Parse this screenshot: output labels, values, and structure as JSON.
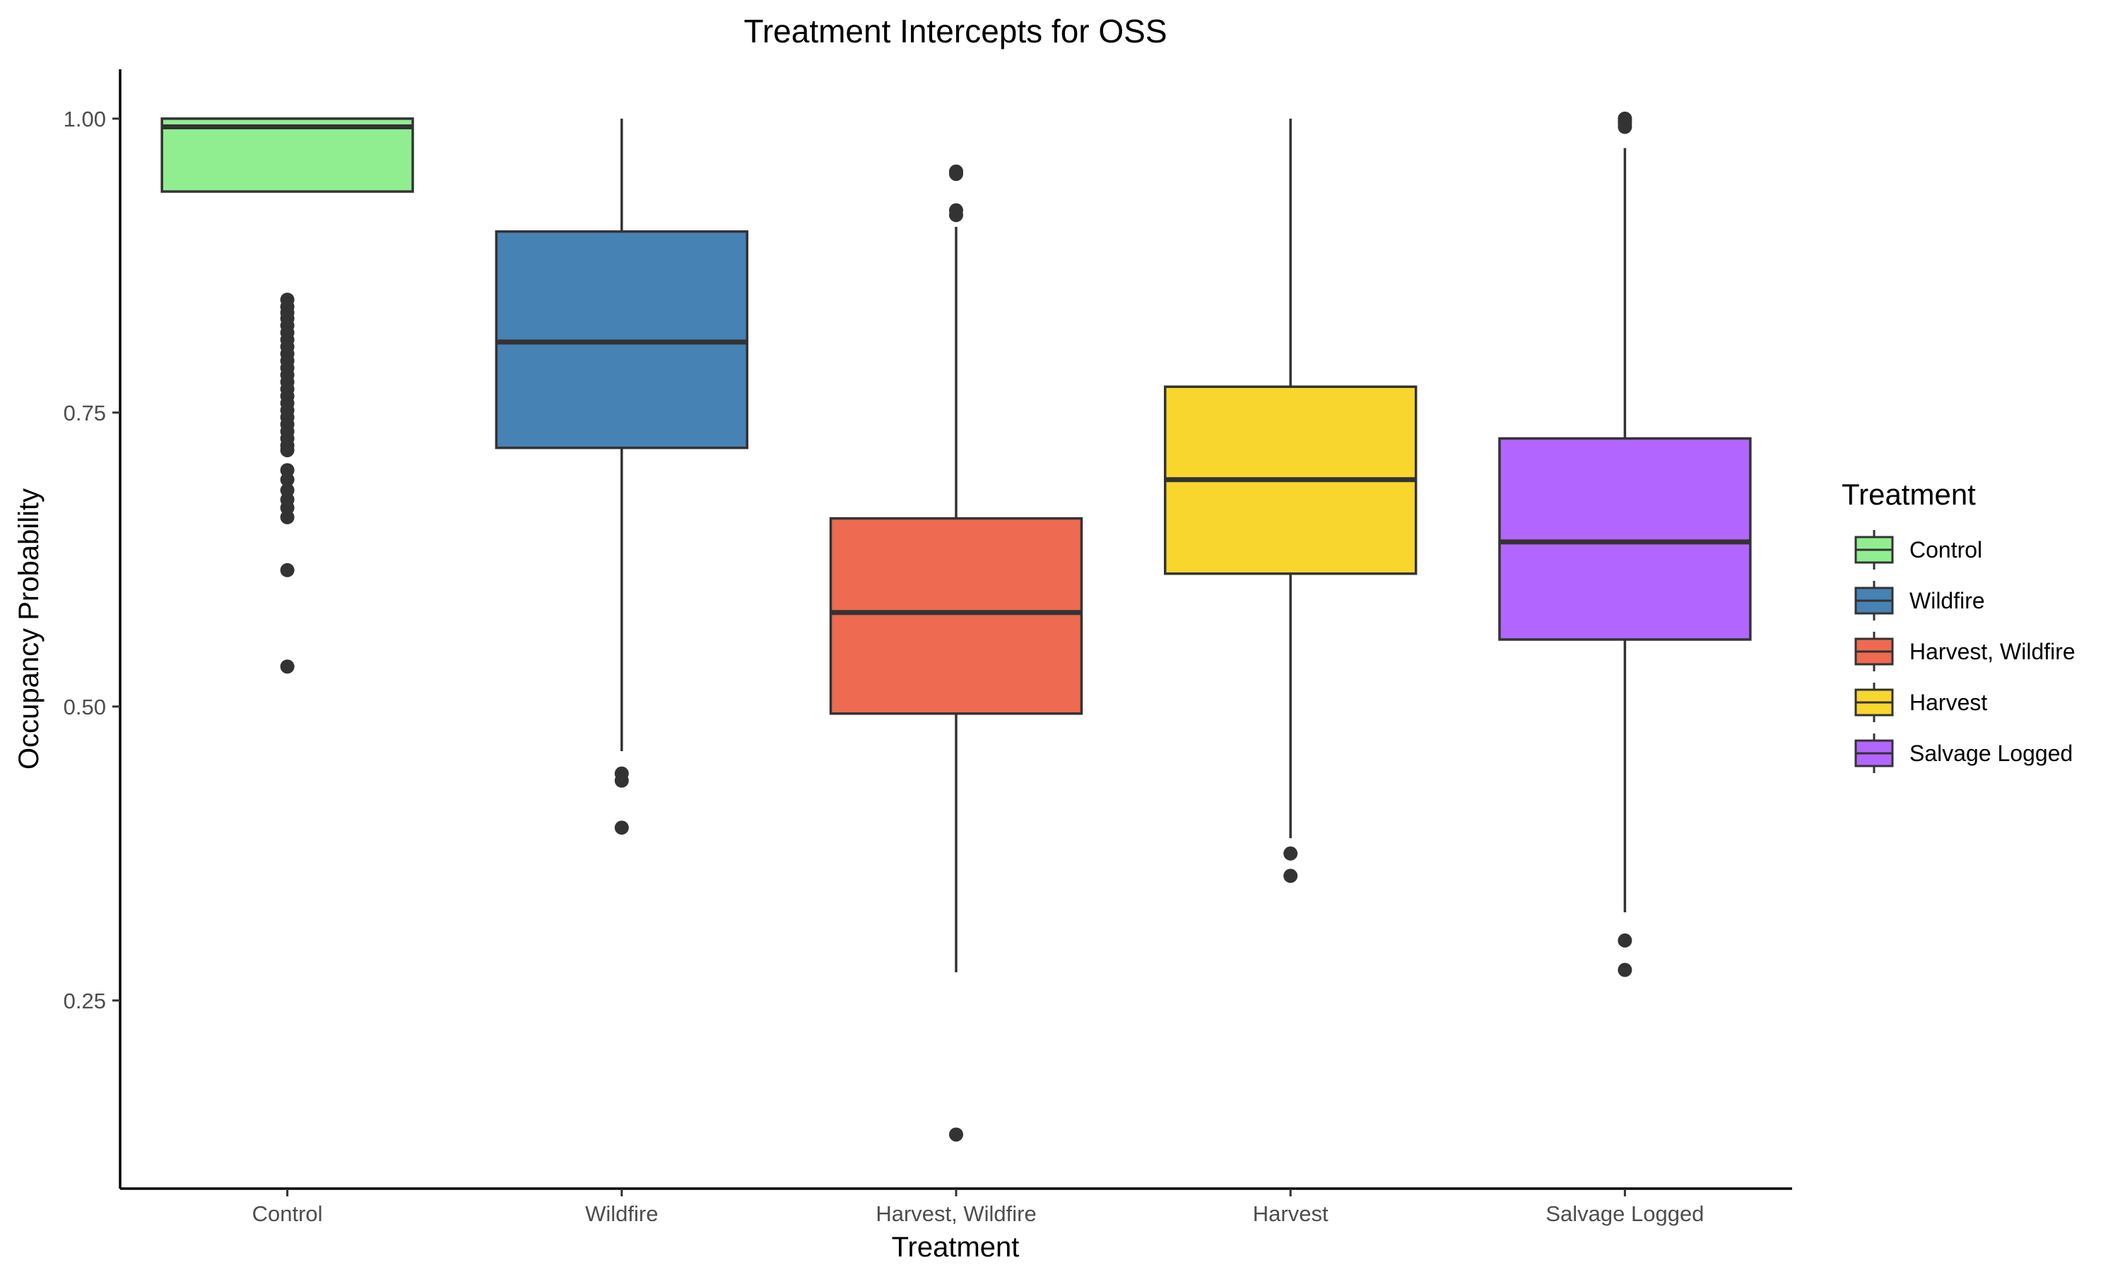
{
  "chart_data": {
    "type": "box",
    "title": "Treatment Intercepts for OSS",
    "xlabel": "Treatment",
    "ylabel": "Occupancy Probability",
    "ylim": [
      0.09,
      1.042
    ],
    "yticks": [
      0.25,
      0.5,
      0.75,
      1.0
    ],
    "ytick_labels": [
      "0.25",
      "0.50",
      "0.75",
      "1.00"
    ],
    "grid": false,
    "legend": {
      "title": "Treatment",
      "position": "right",
      "entries": [
        "Control",
        "Wildfire",
        "Harvest, Wildfire",
        "Harvest",
        "Salvage Logged"
      ]
    },
    "categories": [
      "Control",
      "Wildfire",
      "Harvest, Wildfire",
      "Harvest",
      "Salvage Logged"
    ],
    "series": [
      {
        "category": "Control",
        "color": "#90EE90",
        "whisker_low": 0.938,
        "q1": 0.938,
        "median": 0.993,
        "q3": 1.0,
        "whisker_high": 1.0,
        "outliers": [
          0.846,
          0.84,
          0.835,
          0.83,
          0.824,
          0.818,
          0.812,
          0.806,
          0.8,
          0.794,
          0.788,
          0.782,
          0.776,
          0.77,
          0.764,
          0.758,
          0.752,
          0.746,
          0.74,
          0.734,
          0.728,
          0.722,
          0.718,
          0.701,
          0.693,
          0.684,
          0.676,
          0.669,
          0.661,
          0.616,
          0.534
        ]
      },
      {
        "category": "Wildfire",
        "color": "#4682B4",
        "whisker_low": 0.462,
        "q1": 0.72,
        "median": 0.81,
        "q3": 0.904,
        "whisker_high": 1.0,
        "outliers": [
          0.443,
          0.437,
          0.397
        ]
      },
      {
        "category": "Harvest, Wildfire",
        "color": "#EE6A50",
        "whisker_low": 0.274,
        "q1": 0.494,
        "median": 0.58,
        "q3": 0.66,
        "whisker_high": 0.908,
        "outliers": [
          0.955,
          0.953,
          0.922,
          0.918,
          0.136
        ]
      },
      {
        "category": "Harvest",
        "color": "#F9D62E",
        "whisker_low": 0.388,
        "q1": 0.613,
        "median": 0.693,
        "q3": 0.772,
        "whisker_high": 1.0,
        "outliers": [
          0.375,
          0.356
        ]
      },
      {
        "category": "Salvage Logged",
        "color": "#B266FF",
        "whisker_low": 0.325,
        "q1": 0.557,
        "median": 0.64,
        "q3": 0.728,
        "whisker_high": 0.975,
        "outliers": [
          1.0,
          0.998,
          0.996,
          0.993,
          0.301,
          0.276
        ]
      }
    ]
  }
}
